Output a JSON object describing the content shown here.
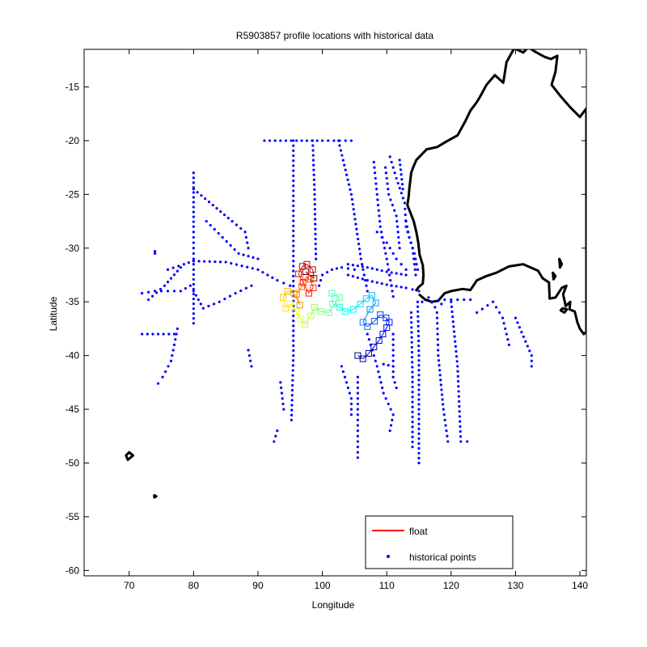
{
  "chart_data": {
    "type": "scatter",
    "title": "R5903857 profile locations with historical data",
    "xlabel": "Longitude",
    "ylabel": "Latitude",
    "xlim": [
      63,
      141
    ],
    "ylim": [
      -60.5,
      -11.5
    ],
    "xticks": [
      70,
      80,
      90,
      100,
      110,
      120,
      130,
      140
    ],
    "yticks": [
      -15,
      -20,
      -25,
      -30,
      -35,
      -40,
      -45,
      -50,
      -55,
      -60
    ],
    "grid": false,
    "legend": {
      "position": "bottom-right",
      "entries": [
        {
          "label": "float",
          "color": "#ff0000",
          "marker": "line"
        },
        {
          "label": "historical points",
          "color": "#0000ff",
          "marker": "dot"
        }
      ]
    },
    "coastline": {
      "color": "#000000",
      "australia": [
        [
          114.5,
          -34.0
        ],
        [
          115.0,
          -33.6
        ],
        [
          115.6,
          -33.3
        ],
        [
          115.7,
          -32.5
        ],
        [
          115.6,
          -31.6
        ],
        [
          115.1,
          -30.6
        ],
        [
          114.9,
          -29.5
        ],
        [
          114.6,
          -28.5
        ],
        [
          114.2,
          -27.5
        ],
        [
          113.6,
          -26.6
        ],
        [
          113.2,
          -26.0
        ],
        [
          113.4,
          -25.2
        ],
        [
          113.5,
          -24.5
        ],
        [
          113.8,
          -23.0
        ],
        [
          114.1,
          -22.5
        ],
        [
          114.6,
          -21.8
        ],
        [
          116.2,
          -20.8
        ],
        [
          117.8,
          -20.6
        ],
        [
          119.2,
          -20.1
        ],
        [
          121.0,
          -19.5
        ],
        [
          122.2,
          -18.2
        ],
        [
          123.0,
          -17.2
        ],
        [
          124.0,
          -16.4
        ],
        [
          124.6,
          -15.8
        ],
        [
          125.5,
          -14.8
        ],
        [
          126.8,
          -13.9
        ],
        [
          128.1,
          -14.6
        ],
        [
          128.6,
          -12.7
        ],
        [
          129.8,
          -11.4
        ],
        [
          131.2,
          -11.8
        ],
        [
          132.0,
          -11.3
        ],
        [
          133.0,
          -11.7
        ],
        [
          134.5,
          -12.2
        ],
        [
          135.5,
          -12.4
        ],
        [
          136.5,
          -12.1
        ],
        [
          136.2,
          -13.6
        ],
        [
          135.6,
          -14.8
        ],
        [
          136.9,
          -15.8
        ],
        [
          138.5,
          -16.9
        ],
        [
          140.0,
          -17.8
        ],
        [
          141.0,
          -17.0
        ],
        [
          141.0,
          -37.8
        ],
        [
          140.6,
          -38.0
        ],
        [
          140.0,
          -37.5
        ],
        [
          139.6,
          -36.9
        ],
        [
          139.2,
          -35.9
        ],
        [
          138.4,
          -35.7
        ],
        [
          138.5,
          -35.0
        ],
        [
          137.8,
          -35.4
        ],
        [
          137.4,
          -34.3
        ],
        [
          137.9,
          -33.5
        ],
        [
          137.2,
          -33.7
        ],
        [
          136.2,
          -34.6
        ],
        [
          135.3,
          -34.7
        ],
        [
          135.2,
          -33.2
        ],
        [
          134.2,
          -32.8
        ],
        [
          133.5,
          -32.1
        ],
        [
          131.2,
          -31.5
        ],
        [
          129.0,
          -31.7
        ],
        [
          127.0,
          -32.3
        ],
        [
          125.5,
          -32.6
        ],
        [
          124.0,
          -33.0
        ],
        [
          123.0,
          -33.9
        ],
        [
          121.8,
          -33.8
        ],
        [
          120.0,
          -34.0
        ],
        [
          119.0,
          -34.2
        ],
        [
          118.0,
          -34.9
        ],
        [
          117.0,
          -35.0
        ],
        [
          116.0,
          -34.8
        ],
        [
          115.0,
          -34.3
        ]
      ],
      "islands": [
        [
          [
            137.3,
            -35.6
          ],
          [
            138.0,
            -35.7
          ],
          [
            137.6,
            -36.0
          ],
          [
            137.0,
            -35.8
          ]
        ],
        [
          [
            136.8,
            -31.0
          ],
          [
            137.2,
            -31.5
          ],
          [
            136.9,
            -31.8
          ]
        ],
        [
          [
            135.8,
            -32.3
          ],
          [
            136.2,
            -32.6
          ],
          [
            135.9,
            -32.9
          ]
        ],
        [
          [
            70.0,
            -49.0
          ],
          [
            70.6,
            -49.3
          ],
          [
            69.8,
            -49.7
          ],
          [
            69.5,
            -49.3
          ]
        ],
        [
          [
            73.9,
            -53.0
          ],
          [
            74.2,
            -53.1
          ],
          [
            73.9,
            -53.2
          ]
        ]
      ]
    },
    "float_track": {
      "color_scale": "jet",
      "points": [
        [
          105.5,
          -40.0
        ],
        [
          106.3,
          -40.3
        ],
        [
          107.2,
          -39.8
        ],
        [
          108.0,
          -39.2
        ],
        [
          108.8,
          -38.6
        ],
        [
          109.4,
          -38.0
        ],
        [
          110.0,
          -37.4
        ],
        [
          110.4,
          -36.9
        ],
        [
          109.9,
          -36.5
        ],
        [
          109.0,
          -36.2
        ],
        [
          108.1,
          -36.8
        ],
        [
          107.0,
          -37.3
        ],
        [
          106.3,
          -36.9
        ],
        [
          107.4,
          -35.7
        ],
        [
          108.3,
          -35.1
        ],
        [
          107.7,
          -34.4
        ],
        [
          106.8,
          -34.7
        ],
        [
          105.9,
          -35.2
        ],
        [
          104.8,
          -35.7
        ],
        [
          103.6,
          -35.9
        ],
        [
          102.7,
          -35.5
        ],
        [
          101.6,
          -35.2
        ],
        [
          101.5,
          -34.2
        ],
        [
          102.7,
          -34.6
        ],
        [
          101.0,
          -36.0
        ],
        [
          99.8,
          -35.9
        ],
        [
          98.8,
          -35.5
        ],
        [
          98.2,
          -36.3
        ],
        [
          97.3,
          -37.1
        ],
        [
          96.6,
          -36.6
        ],
        [
          95.9,
          -35.9
        ],
        [
          95.0,
          -35.2
        ],
        [
          94.3,
          -35.6
        ],
        [
          93.9,
          -34.6
        ],
        [
          94.6,
          -34.0
        ],
        [
          95.6,
          -34.2
        ],
        [
          96.5,
          -35.3
        ],
        [
          96.0,
          -34.3
        ],
        [
          96.8,
          -33.6
        ],
        [
          97.4,
          -32.7
        ],
        [
          98.1,
          -32.9
        ],
        [
          98.6,
          -33.7
        ],
        [
          97.9,
          -34.2
        ],
        [
          97.0,
          -33.2
        ],
        [
          96.3,
          -32.4
        ],
        [
          96.9,
          -31.7
        ],
        [
          97.6,
          -31.5
        ],
        [
          98.5,
          -32.0
        ],
        [
          98.7,
          -32.8
        ],
        [
          97.4,
          -32.2
        ]
      ]
    },
    "historical_points": {
      "color": "#0000ff",
      "tracks": [
        [
          [
            91.0,
            -20.0
          ],
          [
            96.0,
            -20.0
          ],
          [
            100.0,
            -20.0
          ],
          [
            104.5,
            -20.0
          ]
        ],
        [
          [
            95.5,
            -20.0
          ],
          [
            95.5,
            -27.0
          ],
          [
            95.5,
            -34.0
          ],
          [
            95.5,
            -40.0
          ],
          [
            95.2,
            -46.0
          ]
        ],
        [
          [
            98.5,
            -20.0
          ],
          [
            98.8,
            -25.0
          ],
          [
            99.0,
            -31.0
          ]
        ],
        [
          [
            102.5,
            -20.0
          ],
          [
            104.5,
            -25.0
          ],
          [
            106.0,
            -31.0
          ],
          [
            107.0,
            -34.0
          ]
        ],
        [
          [
            80.0,
            -23.0
          ],
          [
            80.0,
            -28.0
          ],
          [
            80.0,
            -32.0
          ],
          [
            80.0,
            -37.0
          ]
        ],
        [
          [
            80.0,
            -24.5
          ],
          [
            83.0,
            -26.0
          ],
          [
            86.0,
            -27.5
          ],
          [
            88.0,
            -28.5
          ],
          [
            88.5,
            -30.0
          ]
        ],
        [
          [
            82.0,
            -27.5
          ],
          [
            84.5,
            -29.0
          ],
          [
            87.0,
            -30.5
          ],
          [
            90.0,
            -31.0
          ]
        ],
        [
          [
            80.0,
            -31.2
          ],
          [
            85.0,
            -31.3
          ],
          [
            90.0,
            -32.0
          ],
          [
            93.0,
            -33.0
          ],
          [
            95.0,
            -33.5
          ]
        ],
        [
          [
            76.0,
            -32.0
          ],
          [
            78.5,
            -31.5
          ],
          [
            80.0,
            -31.2
          ]
        ],
        [
          [
            73.0,
            -34.8
          ],
          [
            75.5,
            -33.5
          ],
          [
            78.0,
            -31.8
          ]
        ],
        [
          [
            72.0,
            -34.2
          ],
          [
            74.0,
            -34.0
          ],
          [
            76.0,
            -34.0
          ],
          [
            78.0,
            -34.0
          ],
          [
            79.5,
            -33.5
          ]
        ],
        [
          [
            80.0,
            -34.0
          ],
          [
            81.5,
            -35.6
          ],
          [
            84.0,
            -35.0
          ],
          [
            86.5,
            -34.2
          ],
          [
            89.0,
            -33.5
          ]
        ],
        [
          [
            72.0,
            -38.0
          ],
          [
            74.5,
            -38.0
          ],
          [
            77.0,
            -38.0
          ]
        ],
        [
          [
            77.5,
            -37.5
          ],
          [
            77.0,
            -39.0
          ],
          [
            76.5,
            -40.5
          ],
          [
            75.2,
            -42.0
          ],
          [
            74.5,
            -42.6
          ]
        ],
        [
          [
            74.0,
            -30.3
          ],
          [
            74.0,
            -30.5
          ]
        ],
        [
          [
            99.5,
            -33.5
          ],
          [
            100.0,
            -32.5
          ],
          [
            101.5,
            -32.0
          ],
          [
            103.0,
            -31.8
          ],
          [
            105.0,
            -32.0
          ]
        ],
        [
          [
            104.0,
            -31.5
          ],
          [
            107.0,
            -31.8
          ],
          [
            110.0,
            -32.2
          ],
          [
            113.0,
            -32.5
          ]
        ],
        [
          [
            104.0,
            -32.5
          ],
          [
            107.0,
            -33.0
          ],
          [
            110.0,
            -33.4
          ],
          [
            113.0,
            -33.7
          ],
          [
            115.0,
            -34.0
          ]
        ],
        [
          [
            108.5,
            -28.5
          ],
          [
            110.0,
            -29.5
          ],
          [
            111.5,
            -31.0
          ],
          [
            113.0,
            -32.0
          ]
        ],
        [
          [
            108.0,
            -22.0
          ],
          [
            108.5,
            -25.0
          ],
          [
            109.0,
            -28.0
          ],
          [
            110.0,
            -31.0
          ],
          [
            111.0,
            -34.5
          ]
        ],
        [
          [
            109.8,
            -22.5
          ],
          [
            110.3,
            -25.0
          ],
          [
            111.5,
            -27.0
          ],
          [
            112.0,
            -30.0
          ]
        ],
        [
          [
            110.5,
            -21.5
          ],
          [
            111.5,
            -23.5
          ],
          [
            112.8,
            -25.8
          ],
          [
            113.0,
            -28.0
          ],
          [
            114.0,
            -30.0
          ],
          [
            114.5,
            -32.5
          ]
        ],
        [
          [
            112.0,
            -21.8
          ],
          [
            112.5,
            -24.5
          ]
        ],
        [
          [
            113.0,
            -27.5
          ],
          [
            113.5,
            -29.0
          ],
          [
            114.3,
            -30.5
          ],
          [
            114.8,
            -32.0
          ]
        ],
        [
          [
            114.8,
            -35.0
          ],
          [
            115.0,
            -40.0
          ],
          [
            115.0,
            -45.0
          ],
          [
            115.0,
            -50.0
          ]
        ],
        [
          [
            113.8,
            -36.0
          ],
          [
            114.0,
            -42.0
          ],
          [
            114.0,
            -48.5
          ]
        ],
        [
          [
            117.8,
            -36.0
          ],
          [
            118.0,
            -40.0
          ],
          [
            118.8,
            -45.0
          ],
          [
            119.5,
            -48.0
          ]
        ],
        [
          [
            120.0,
            -35.0
          ],
          [
            121.0,
            -41.0
          ],
          [
            121.5,
            -48.0
          ],
          [
            122.5,
            -48.0
          ]
        ],
        [
          [
            115.5,
            -35.0
          ],
          [
            117.0,
            -35.0
          ],
          [
            119.0,
            -34.8
          ],
          [
            121.0,
            -34.8
          ],
          [
            123.0,
            -34.8
          ]
        ],
        [
          [
            116.5,
            -34.6
          ],
          [
            117.5,
            -35.5
          ],
          [
            118.5,
            -35.2
          ]
        ],
        [
          [
            107.0,
            -38.0
          ],
          [
            108.5,
            -41.0
          ],
          [
            109.5,
            -43.5
          ],
          [
            111.0,
            -45.5
          ],
          [
            110.5,
            -47.0
          ]
        ],
        [
          [
            105.5,
            -42.0
          ],
          [
            105.5,
            -45.0
          ],
          [
            105.5,
            -49.5
          ]
        ],
        [
          [
            103.0,
            -41.0
          ],
          [
            104.5,
            -44.0
          ],
          [
            104.5,
            -45.5
          ]
        ],
        [
          [
            111.0,
            -38.0
          ],
          [
            111.0,
            -42.0
          ],
          [
            111.5,
            -43.0
          ]
        ],
        [
          [
            88.5,
            -39.5
          ],
          [
            89.0,
            -41.0
          ]
        ],
        [
          [
            93.5,
            -42.5
          ],
          [
            94.0,
            -45.0
          ]
        ],
        [
          [
            92.5,
            -48.0
          ],
          [
            93.0,
            -47.0
          ]
        ],
        [
          [
            127.0,
            -35.5
          ],
          [
            128.0,
            -36.5
          ],
          [
            129.0,
            -39.0
          ]
        ],
        [
          [
            130.0,
            -36.5
          ],
          [
            132.5,
            -40.0
          ],
          [
            132.5,
            -41.0
          ]
        ],
        [
          [
            124.0,
            -36.0
          ],
          [
            126.5,
            -35.0
          ]
        ],
        [
          [
            109.5,
            -40.8
          ],
          [
            111.0,
            -41.0
          ]
        ]
      ]
    }
  }
}
